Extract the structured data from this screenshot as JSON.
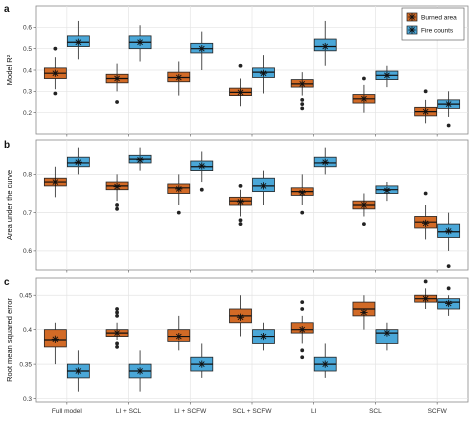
{
  "colors": {
    "burned": "#d26a26",
    "fire": "#4aa7d8",
    "grid": "#e4e4e4",
    "frame": "#8a8a8a"
  },
  "legend": {
    "items": [
      {
        "key": "burned",
        "label": "Burned area"
      },
      {
        "key": "fire",
        "label": "Fire counts"
      }
    ]
  },
  "chart_data": [
    {
      "type": "box",
      "panel_label": "a",
      "ylabel": "Model R²",
      "categories": [
        "Full model",
        "LI + SCL",
        "LI + SCFW",
        "SCL + SCFW",
        "LI",
        "SCL",
        "SCFW"
      ],
      "ylim": [
        0.1,
        0.7
      ],
      "yticks": [
        0.2,
        0.3,
        0.4,
        0.5,
        0.6
      ],
      "grid": true,
      "legend_position": "top-right",
      "series": [
        {
          "key": "burned",
          "name": "Burned area",
          "boxes": [
            {
              "min": 0.31,
              "q1": 0.36,
              "median": 0.385,
              "q3": 0.41,
              "max": 0.46,
              "mean": 0.385,
              "outliers": [
                0.5,
                0.29
              ]
            },
            {
              "min": 0.3,
              "q1": 0.34,
              "median": 0.36,
              "q3": 0.38,
              "max": 0.43,
              "mean": 0.36,
              "outliers": [
                0.25
              ]
            },
            {
              "min": 0.28,
              "q1": 0.345,
              "median": 0.365,
              "q3": 0.39,
              "max": 0.44,
              "mean": 0.365,
              "outliers": []
            },
            {
              "min": 0.23,
              "q1": 0.28,
              "median": 0.295,
              "q3": 0.315,
              "max": 0.36,
              "mean": 0.295,
              "outliers": [
                0.42
              ]
            },
            {
              "min": 0.28,
              "q1": 0.32,
              "median": 0.335,
              "q3": 0.355,
              "max": 0.39,
              "mean": 0.335,
              "outliers": [
                0.26,
                0.24,
                0.22
              ]
            },
            {
              "min": 0.2,
              "q1": 0.245,
              "median": 0.265,
              "q3": 0.285,
              "max": 0.33,
              "mean": 0.265,
              "outliers": [
                0.36
              ]
            },
            {
              "min": 0.15,
              "q1": 0.185,
              "median": 0.205,
              "q3": 0.225,
              "max": 0.26,
              "mean": 0.205,
              "outliers": [
                0.3
              ]
            }
          ]
        },
        {
          "key": "fire",
          "name": "Fire counts",
          "boxes": [
            {
              "min": 0.45,
              "q1": 0.51,
              "median": 0.53,
              "q3": 0.56,
              "max": 0.63,
              "mean": 0.53,
              "outliers": []
            },
            {
              "min": 0.44,
              "q1": 0.5,
              "median": 0.53,
              "q3": 0.56,
              "max": 0.61,
              "mean": 0.53,
              "outliers": []
            },
            {
              "min": 0.4,
              "q1": 0.48,
              "median": 0.5,
              "q3": 0.525,
              "max": 0.58,
              "mean": 0.5,
              "outliers": []
            },
            {
              "min": 0.29,
              "q1": 0.365,
              "median": 0.39,
              "q3": 0.41,
              "max": 0.47,
              "mean": 0.385,
              "outliers": []
            },
            {
              "min": 0.42,
              "q1": 0.49,
              "median": 0.51,
              "q3": 0.545,
              "max": 0.63,
              "mean": 0.51,
              "outliers": []
            },
            {
              "min": 0.32,
              "q1": 0.355,
              "median": 0.375,
              "q3": 0.395,
              "max": 0.42,
              "mean": 0.375,
              "outliers": []
            },
            {
              "min": 0.18,
              "q1": 0.22,
              "median": 0.24,
              "q3": 0.26,
              "max": 0.3,
              "mean": 0.24,
              "outliers": [
                0.14
              ]
            }
          ]
        }
      ]
    },
    {
      "type": "box",
      "panel_label": "b",
      "ylabel": "Area under the curve",
      "categories": [
        "Full model",
        "LI + SCL",
        "LI + SCFW",
        "SCL + SCFW",
        "LI",
        "SCL",
        "SCFW"
      ],
      "ylim": [
        0.55,
        0.89
      ],
      "yticks": [
        0.6,
        0.7,
        0.8
      ],
      "grid": true,
      "series": [
        {
          "key": "burned",
          "name": "Burned area",
          "boxes": [
            {
              "min": 0.74,
              "q1": 0.77,
              "median": 0.78,
              "q3": 0.79,
              "max": 0.82,
              "mean": 0.78,
              "outliers": []
            },
            {
              "min": 0.73,
              "q1": 0.76,
              "median": 0.77,
              "q3": 0.78,
              "max": 0.8,
              "mean": 0.768,
              "outliers": [
                0.72,
                0.71
              ]
            },
            {
              "min": 0.72,
              "q1": 0.75,
              "median": 0.765,
              "q3": 0.775,
              "max": 0.8,
              "mean": 0.762,
              "outliers": [
                0.7
              ]
            },
            {
              "min": 0.69,
              "q1": 0.72,
              "median": 0.73,
              "q3": 0.74,
              "max": 0.76,
              "mean": 0.728,
              "outliers": [
                0.68,
                0.67,
                0.77
              ]
            },
            {
              "min": 0.72,
              "q1": 0.745,
              "median": 0.755,
              "q3": 0.765,
              "max": 0.8,
              "mean": 0.752,
              "outliers": [
                0.7
              ]
            },
            {
              "min": 0.69,
              "q1": 0.71,
              "median": 0.72,
              "q3": 0.73,
              "max": 0.75,
              "mean": 0.72,
              "outliers": [
                0.67
              ]
            },
            {
              "min": 0.63,
              "q1": 0.66,
              "median": 0.675,
              "q3": 0.69,
              "max": 0.72,
              "mean": 0.672,
              "outliers": [
                0.75
              ]
            }
          ]
        },
        {
          "key": "fire",
          "name": "Fire counts",
          "boxes": [
            {
              "min": 0.8,
              "q1": 0.82,
              "median": 0.83,
              "q3": 0.845,
              "max": 0.87,
              "mean": 0.832,
              "outliers": []
            },
            {
              "min": 0.81,
              "q1": 0.83,
              "median": 0.84,
              "q3": 0.85,
              "max": 0.87,
              "mean": 0.838,
              "outliers": []
            },
            {
              "min": 0.78,
              "q1": 0.81,
              "median": 0.82,
              "q3": 0.835,
              "max": 0.86,
              "mean": 0.822,
              "outliers": [
                0.76
              ]
            },
            {
              "min": 0.72,
              "q1": 0.755,
              "median": 0.77,
              "q3": 0.79,
              "max": 0.81,
              "mean": 0.77,
              "outliers": []
            },
            {
              "min": 0.8,
              "q1": 0.82,
              "median": 0.83,
              "q3": 0.845,
              "max": 0.87,
              "mean": 0.832,
              "outliers": []
            },
            {
              "min": 0.73,
              "q1": 0.75,
              "median": 0.76,
              "q3": 0.77,
              "max": 0.78,
              "mean": 0.758,
              "outliers": []
            },
            {
              "min": 0.6,
              "q1": 0.635,
              "median": 0.65,
              "q3": 0.67,
              "max": 0.7,
              "mean": 0.652,
              "outliers": [
                0.56
              ]
            }
          ]
        }
      ]
    },
    {
      "type": "box",
      "panel_label": "c",
      "ylabel": "Root mean squared error",
      "categories": [
        "Full model",
        "LI + SCL",
        "LI + SCFW",
        "SCL + SCFW",
        "LI",
        "SCL",
        "SCFW"
      ],
      "ylim": [
        0.295,
        0.475
      ],
      "yticks": [
        0.3,
        0.35,
        0.4,
        0.45
      ],
      "grid": true,
      "series": [
        {
          "key": "burned",
          "name": "Burned area",
          "boxes": [
            {
              "min": 0.35,
              "q1": 0.375,
              "median": 0.385,
              "q3": 0.4,
              "max": 0.41,
              "mean": 0.386,
              "outliers": []
            },
            {
              "min": 0.385,
              "q1": 0.39,
              "median": 0.395,
              "q3": 0.4,
              "max": 0.41,
              "mean": 0.395,
              "outliers": [
                0.43,
                0.425,
                0.42,
                0.38,
                0.375
              ]
            },
            {
              "min": 0.37,
              "q1": 0.383,
              "median": 0.39,
              "q3": 0.4,
              "max": 0.42,
              "mean": 0.39,
              "outliers": []
            },
            {
              "min": 0.39,
              "q1": 0.41,
              "median": 0.42,
              "q3": 0.43,
              "max": 0.45,
              "mean": 0.418,
              "outliers": []
            },
            {
              "min": 0.38,
              "q1": 0.395,
              "median": 0.4,
              "q3": 0.41,
              "max": 0.42,
              "mean": 0.4,
              "outliers": [
                0.44,
                0.43,
                0.37,
                0.36
              ]
            },
            {
              "min": 0.4,
              "q1": 0.42,
              "median": 0.43,
              "q3": 0.44,
              "max": 0.45,
              "mean": 0.425,
              "outliers": []
            },
            {
              "min": 0.43,
              "q1": 0.44,
              "median": 0.445,
              "q3": 0.45,
              "max": 0.46,
              "mean": 0.445,
              "outliers": [
                0.47
              ]
            }
          ]
        },
        {
          "key": "fire",
          "name": "Fire counts",
          "boxes": [
            {
              "min": 0.31,
              "q1": 0.33,
              "median": 0.34,
              "q3": 0.35,
              "max": 0.37,
              "mean": 0.34,
              "outliers": []
            },
            {
              "min": 0.31,
              "q1": 0.33,
              "median": 0.34,
              "q3": 0.35,
              "max": 0.37,
              "mean": 0.34,
              "outliers": []
            },
            {
              "min": 0.33,
              "q1": 0.34,
              "median": 0.35,
              "q3": 0.36,
              "max": 0.38,
              "mean": 0.35,
              "outliers": []
            },
            {
              "min": 0.37,
              "q1": 0.38,
              "median": 0.39,
              "q3": 0.4,
              "max": 0.41,
              "mean": 0.39,
              "outliers": []
            },
            {
              "min": 0.33,
              "q1": 0.34,
              "median": 0.35,
              "q3": 0.36,
              "max": 0.38,
              "mean": 0.35,
              "outliers": []
            },
            {
              "min": 0.37,
              "q1": 0.38,
              "median": 0.395,
              "q3": 0.4,
              "max": 0.41,
              "mean": 0.395,
              "outliers": []
            },
            {
              "min": 0.42,
              "q1": 0.43,
              "median": 0.44,
              "q3": 0.445,
              "max": 0.45,
              "mean": 0.438,
              "outliers": [
                0.46
              ]
            }
          ]
        }
      ]
    }
  ]
}
